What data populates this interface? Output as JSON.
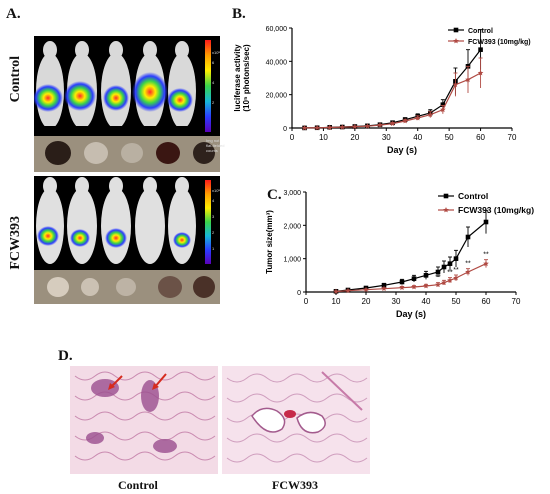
{
  "panels": {
    "a": "A.",
    "b": "B.",
    "c": "C.",
    "d": "D."
  },
  "imaging": {
    "row_labels": [
      "Control",
      "FCW393"
    ],
    "colorbar_ticks": [
      "x10⁵",
      "6",
      "4",
      "2"
    ],
    "colorbar_ticks_bottom": [
      "x10⁵",
      "4",
      "3",
      "2",
      "1"
    ],
    "colorbar_note_control": "Color Bar\nMin = 1e+07\nMax = 8e+08",
    "colorbar_note_fcw": "Color Bar\nMin = 1e+07\nMax = 8e+08",
    "photo_note": "Img not\nflat-fielded\ncounts",
    "colors": {
      "hot": "#ff2a2a",
      "mid": "#ffee00",
      "cool": "#39d34a",
      "cold": "#2b3cff"
    }
  },
  "histology": {
    "labels": [
      "Control",
      "FCW393"
    ],
    "arrow_color": "#d62b1e"
  },
  "chart_data": [
    {
      "id": "B",
      "type": "line",
      "xlabel": "Day (s)",
      "ylabel": "luciferase activity\n(10⁵ photons/sec)",
      "xlim": [
        0,
        70
      ],
      "ylim": [
        0,
        60000
      ],
      "xticks": [
        "0",
        "10",
        "20",
        "30",
        "40",
        "50",
        "60",
        "70"
      ],
      "yticks": [
        "0",
        "20,000",
        "40,000",
        "60,000"
      ],
      "x": [
        4,
        8,
        12,
        16,
        20,
        24,
        28,
        32,
        36,
        40,
        44,
        48,
        52,
        56,
        60
      ],
      "series": [
        {
          "name": "Control",
          "color": "#000000",
          "marker": "square",
          "values": [
            50,
            150,
            400,
            600,
            900,
            1300,
            2000,
            3200,
            5000,
            7000,
            9000,
            14000,
            28000,
            37000,
            47000
          ],
          "errors": [
            30,
            80,
            150,
            200,
            300,
            400,
            600,
            900,
            1200,
            1500,
            2000,
            3000,
            8000,
            10000,
            12000
          ]
        },
        {
          "name": "FCW393 (10mg/kg)",
          "color": "#b04a43",
          "marker": "star",
          "values": [
            40,
            120,
            300,
            500,
            800,
            1100,
            1700,
            2600,
            4200,
            6000,
            8000,
            11000,
            26000,
            29000,
            33000
          ],
          "errors": [
            25,
            60,
            120,
            180,
            250,
            350,
            500,
            800,
            1000,
            1300,
            1800,
            2500,
            7000,
            8000,
            9000
          ]
        }
      ],
      "legend": "top-right"
    },
    {
      "id": "C",
      "type": "line",
      "xlabel": "Day (s)",
      "ylabel": "Tumor size(mm³)",
      "xlim": [
        0,
        70
      ],
      "ylim": [
        0,
        3000
      ],
      "xticks": [
        "0",
        "10",
        "20",
        "30",
        "40",
        "50",
        "60",
        "70"
      ],
      "yticks": [
        "0",
        "1,000",
        "2,000",
        "3,000"
      ],
      "x": [
        10,
        14,
        20,
        26,
        32,
        36,
        40,
        44,
        46,
        48,
        50,
        54,
        60
      ],
      "series": [
        {
          "name": "Control",
          "color": "#000000",
          "marker": "square",
          "values": [
            20,
            60,
            120,
            200,
            300,
            400,
            500,
            600,
            750,
            850,
            1000,
            1650,
            2100
          ],
          "errors": [
            10,
            20,
            40,
            60,
            80,
            100,
            120,
            150,
            180,
            200,
            250,
            300,
            350
          ]
        },
        {
          "name": "FCW393 (10mg/kg)",
          "color": "#b04a43",
          "marker": "star",
          "values": [
            15,
            40,
            70,
            100,
            130,
            150,
            180,
            220,
            280,
            350,
            420,
            600,
            850
          ],
          "errors": [
            8,
            15,
            20,
            30,
            35,
            40,
            50,
            60,
            70,
            80,
            90,
            100,
            120
          ]
        }
      ],
      "annotations": [
        {
          "x": 44,
          "text": "**"
        },
        {
          "x": 48,
          "text": "**"
        },
        {
          "x": 50,
          "text": "**"
        },
        {
          "x": 54,
          "text": "**"
        },
        {
          "x": 60,
          "text": "**"
        }
      ],
      "legend": "top-right"
    }
  ]
}
